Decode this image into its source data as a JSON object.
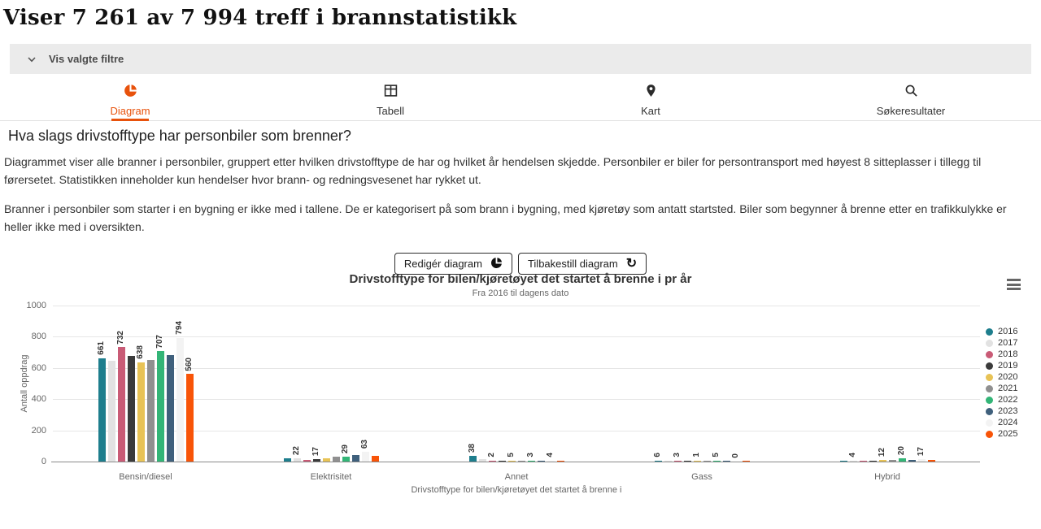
{
  "page": {
    "title": "Viser 7 261 av 7 994 treff i brannstatistikk"
  },
  "filters": {
    "toggle_label": "Vis valgte filtre"
  },
  "tabs": [
    {
      "label": "Diagram",
      "icon": "pie-chart-icon",
      "active": true
    },
    {
      "label": "Tabell",
      "icon": "table-icon",
      "active": false
    },
    {
      "label": "Kart",
      "icon": "map-pin-icon",
      "active": false
    },
    {
      "label": "Søkeresultater",
      "icon": "search-icon",
      "active": false
    }
  ],
  "section": {
    "heading": "Hva slags drivstofftype har personbiler som brenner?",
    "paragraph1": "Diagrammet viser alle branner i personbiler, gruppert etter hvilken drivstofftype de har og hvilket år hendelsen skjedde. Personbiler er biler for persontransport med høyest 8 sitteplasser i tillegg til førersetet. Statistikken inneholder kun hendelser hvor brann- og redningsvesenet har rykket ut.",
    "paragraph2": "Branner i personbiler som starter i en bygning er ikke med i tallene. De er kategorisert på som brann i bygning, med kjøretøy som antatt startsted. Biler som begynner å brenne etter en trafikkulykke er heller ikke med i oversikten."
  },
  "toolbar": {
    "edit_label": "Redigér diagram",
    "reset_label": "Tilbakestill diagram",
    "reset_icon_glyph": "↻"
  },
  "colors": {
    "accent": "#e8520c",
    "grid": "#e6e6e6",
    "axis_text": "#666666"
  },
  "chart_data": {
    "type": "bar",
    "title": "Drivstofftype for bilen/kjøretøyet det startet å brenne i pr år",
    "subtitle": "Fra 2016 til dagens dato",
    "xlabel": "Drivstofftype for bilen/kjøretøyet det startet å brenne i",
    "ylabel": "Antall oppdrag",
    "ylim": [
      0,
      1000
    ],
    "yticks": [
      0,
      200,
      400,
      600,
      800,
      1000
    ],
    "grid": true,
    "legend_position": "right",
    "categories": [
      "Bensin/diesel",
      "Elektrisitet",
      "Annet",
      "Gass",
      "Hybrid"
    ],
    "series": [
      {
        "name": "2016",
        "color": "#1e7e8d",
        "values": [
          661,
          20,
          38,
          6,
          1
        ],
        "label_shown": [
          1,
          0,
          1,
          1,
          0
        ]
      },
      {
        "name": "2017",
        "color": "#e2e2e2",
        "values": [
          645,
          22,
          16,
          2,
          4
        ],
        "label_shown": [
          0,
          1,
          0,
          0,
          1
        ]
      },
      {
        "name": "2018",
        "color": "#c95b76",
        "values": [
          732,
          10,
          2,
          3,
          3
        ],
        "label_shown": [
          1,
          0,
          1,
          1,
          0
        ]
      },
      {
        "name": "2019",
        "color": "#3b3b3b",
        "values": [
          678,
          17,
          3,
          1,
          1
        ],
        "label_shown": [
          0,
          1,
          0,
          0,
          0
        ]
      },
      {
        "name": "2020",
        "color": "#e8c356",
        "values": [
          638,
          21,
          5,
          1,
          12
        ],
        "label_shown": [
          1,
          0,
          1,
          1,
          1
        ]
      },
      {
        "name": "2021",
        "color": "#909090",
        "values": [
          652,
          33,
          7,
          2,
          10
        ],
        "label_shown": [
          0,
          0,
          0,
          0,
          0
        ]
      },
      {
        "name": "2022",
        "color": "#33b577",
        "values": [
          707,
          29,
          3,
          5,
          20
        ],
        "label_shown": [
          1,
          1,
          1,
          1,
          1
        ]
      },
      {
        "name": "2023",
        "color": "#3f607c",
        "values": [
          682,
          40,
          2,
          3,
          13
        ],
        "label_shown": [
          0,
          0,
          0,
          0,
          0
        ]
      },
      {
        "name": "2024",
        "color": "#f3f3f3",
        "values": [
          794,
          63,
          4,
          0,
          17
        ],
        "label_shown": [
          1,
          1,
          1,
          1,
          1
        ]
      },
      {
        "name": "2025",
        "color": "#f85408",
        "values": [
          560,
          35,
          2,
          1,
          8
        ],
        "label_shown": [
          1,
          0,
          0,
          0,
          0
        ]
      }
    ]
  }
}
